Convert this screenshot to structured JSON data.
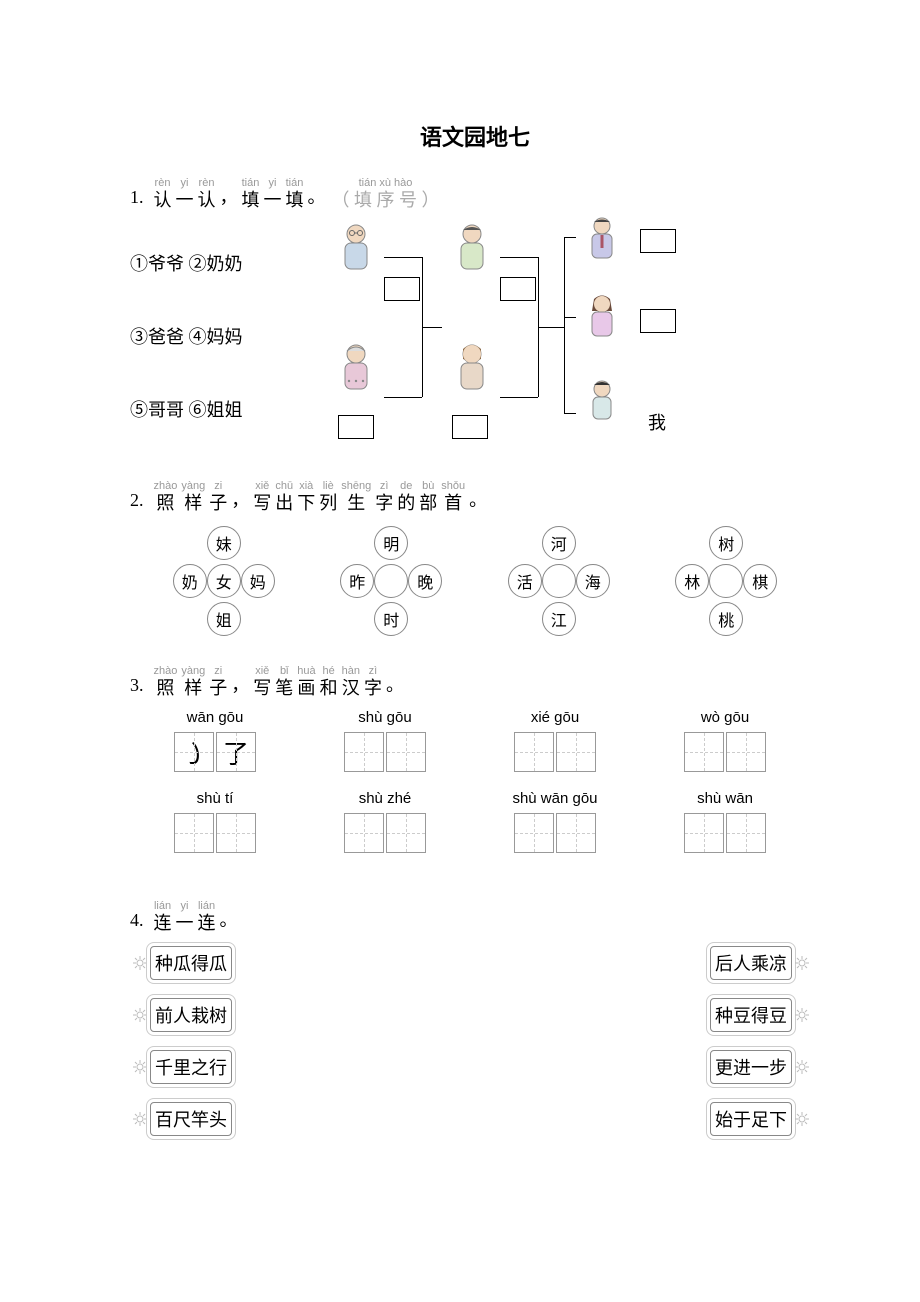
{
  "title": "语文园地七",
  "q1": {
    "num": "1.",
    "words": [
      {
        "py": "rèn",
        "hz": "认"
      },
      {
        "py": "yi",
        "hz": "一"
      },
      {
        "py": "rèn",
        "hz": "认"
      },
      {
        "py": "",
        "hz": "，"
      },
      {
        "py": "tián",
        "hz": "填"
      },
      {
        "py": "yi",
        "hz": "一"
      },
      {
        "py": "tián",
        "hz": "填"
      },
      {
        "py": "",
        "hz": "。"
      }
    ],
    "hint": "（ 填 序 号 ）",
    "hint_py": "tián xù hào",
    "labels": [
      "①爷爷 ②奶奶",
      "③爸爸 ④妈妈",
      "⑤哥哥 ⑥姐姐"
    ],
    "me": "我"
  },
  "q2": {
    "num": "2.",
    "words": [
      {
        "py": "zhào",
        "hz": "照"
      },
      {
        "py": "yàng",
        "hz": "样"
      },
      {
        "py": "zi",
        "hz": "子"
      },
      {
        "py": "",
        "hz": "，"
      },
      {
        "py": "xiě",
        "hz": "写"
      },
      {
        "py": "chū",
        "hz": "出"
      },
      {
        "py": "xià",
        "hz": "下"
      },
      {
        "py": "liè",
        "hz": "列"
      },
      {
        "py": "shēng",
        "hz": "生"
      },
      {
        "py": "zì",
        "hz": "字"
      },
      {
        "py": "de",
        "hz": "的"
      },
      {
        "py": "bù",
        "hz": "部"
      },
      {
        "py": "shǒu",
        "hz": "首"
      },
      {
        "py": "",
        "hz": "。"
      }
    ],
    "flowers": [
      {
        "top": "妹",
        "left": "奶",
        "right": "妈",
        "bottom": "姐",
        "center": "女"
      },
      {
        "top": "明",
        "left": "昨",
        "right": "晚",
        "bottom": "时",
        "center": ""
      },
      {
        "top": "河",
        "left": "活",
        "right": "海",
        "bottom": "江",
        "center": ""
      },
      {
        "top": "树",
        "left": "林",
        "right": "棋",
        "bottom": "桃",
        "center": ""
      }
    ]
  },
  "q3": {
    "num": "3.",
    "words": [
      {
        "py": "zhào",
        "hz": "照"
      },
      {
        "py": "yàng",
        "hz": "样"
      },
      {
        "py": "zi",
        "hz": "子"
      },
      {
        "py": "",
        "hz": "，"
      },
      {
        "py": "xiě",
        "hz": "写"
      },
      {
        "py": "bǐ",
        "hz": "笔"
      },
      {
        "py": "huà",
        "hz": "画"
      },
      {
        "py": "hé",
        "hz": "和"
      },
      {
        "py": "hàn",
        "hz": "汉"
      },
      {
        "py": "zì",
        "hz": "字"
      },
      {
        "py": "",
        "hz": "。"
      }
    ],
    "strokes": [
      {
        "py": "wān gōu",
        "b1": "㇁",
        "b2": "了"
      },
      {
        "py": "shù gōu",
        "b1": "",
        "b2": ""
      },
      {
        "py": "xié gōu",
        "b1": "",
        "b2": ""
      },
      {
        "py": "wò gōu",
        "b1": "",
        "b2": ""
      },
      {
        "py": "shù tí",
        "b1": "",
        "b2": ""
      },
      {
        "py": "shù zhé",
        "b1": "",
        "b2": ""
      },
      {
        "py": "shù wān gōu",
        "b1": "",
        "b2": ""
      },
      {
        "py": "shù wān",
        "b1": "",
        "b2": ""
      }
    ]
  },
  "q4": {
    "num": "4.",
    "words": [
      {
        "py": "lián",
        "hz": "连"
      },
      {
        "py": "yi",
        "hz": "一"
      },
      {
        "py": "lián",
        "hz": "连"
      },
      {
        "py": "",
        "hz": "。"
      }
    ],
    "left": [
      "种瓜得瓜",
      "前人栽树",
      "千里之行",
      "百尺竿头"
    ],
    "right": [
      "后人乘凉",
      "种豆得豆",
      "更进一步",
      "始于足下"
    ]
  }
}
